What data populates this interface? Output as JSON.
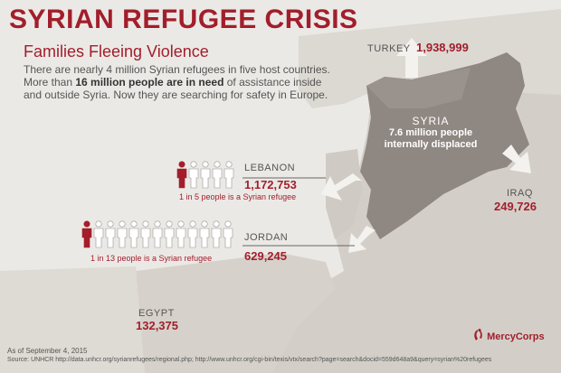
{
  "title": "SYRIAN REFUGEE CRISIS",
  "subtitle": "Families Fleeing Violence",
  "intro": {
    "part1": "There are nearly 4 million Syrian refugees in five host countries. More than ",
    "highlight": "16 million people are in need",
    "part2": " of assistance inside and outside Syria. Now they are searching for safety in Europe."
  },
  "countries": {
    "turkey": {
      "name": "TURKEY",
      "count": "1,938,999"
    },
    "syria": {
      "name": "SYRIA",
      "count": "7.6 million people",
      "detail": "internally displaced"
    },
    "lebanon": {
      "name": "LEBANON",
      "count": "1,172,753",
      "ratio": "1 in 5 people is a Syrian refugee",
      "figures_total": 5,
      "figures_highlighted": 1
    },
    "jordan": {
      "name": "JORDAN",
      "count": "629,245",
      "ratio": "1 in 13 people is a Syrian refugee",
      "figures_total": 13,
      "figures_highlighted": 1
    },
    "iraq": {
      "name": "IRAQ",
      "count": "249,726"
    },
    "egypt": {
      "name": "EGYPT",
      "count": "132,375"
    }
  },
  "footer": {
    "as_of": "As of September 4, 2015",
    "source": "Source: UNHCR http://data.unhcr.org/syrianrefugees/regional.php; http://www.unhcr.org/cgi-bin/texis/vtx/search?page=search&docid=559d648a9&query=syrian%20refugees"
  },
  "logo": {
    "text": "MercyCorps",
    "icon": "mercycorps-logo-icon"
  },
  "colors": {
    "accent": "#a21e2b",
    "syria": "#8f8782",
    "land": "#d8d4ce",
    "sea": "#ebe9e6"
  }
}
